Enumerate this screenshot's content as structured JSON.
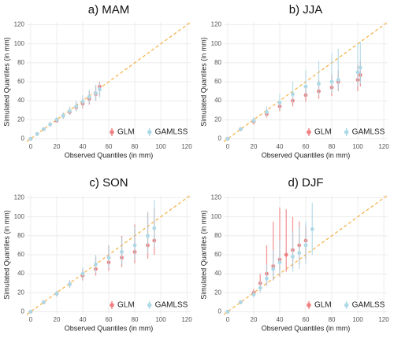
{
  "chart_data": [
    {
      "type": "scatter",
      "title": "a) MAM",
      "xlabel": "Observed Quantiles (in mm)",
      "ylabel": "Simulated Quantiles (in mm)",
      "xlim": [
        -3,
        123
      ],
      "ylim": [
        -3,
        123
      ],
      "xticks": [
        0,
        20,
        40,
        60,
        80,
        100,
        120
      ],
      "yticks": [
        0,
        20,
        40,
        60,
        80,
        100,
        120
      ],
      "grid": true,
      "legend": "bottom-right",
      "series": [
        {
          "name": "GLM",
          "color": "#f08080",
          "x": [
            0,
            5,
            10,
            15,
            20,
            25,
            30,
            35,
            40,
            45,
            50,
            53
          ],
          "values": [
            0,
            5,
            10,
            15,
            19,
            24,
            28,
            33,
            37,
            42,
            47,
            55
          ],
          "lower": [
            0,
            4,
            8,
            13,
            17,
            21,
            25,
            29,
            32,
            36,
            40,
            45
          ],
          "upper": [
            1,
            6,
            12,
            17,
            22,
            27,
            32,
            38,
            43,
            50,
            56,
            60
          ]
        },
        {
          "name": "GAMLSS",
          "color": "#add8e6",
          "x": [
            0,
            5,
            10,
            15,
            20,
            25,
            30,
            35,
            40,
            45,
            50,
            53
          ],
          "values": [
            0,
            5,
            10,
            15,
            20,
            24,
            29,
            34,
            39,
            44,
            48,
            52
          ],
          "lower": [
            0,
            4,
            8,
            13,
            17,
            21,
            25,
            29,
            33,
            37,
            40,
            43
          ],
          "upper": [
            1,
            6,
            12,
            18,
            23,
            28,
            34,
            40,
            46,
            52,
            57,
            59
          ]
        }
      ]
    },
    {
      "type": "scatter",
      "title": "b) JJA",
      "xlabel": "Observed Quantiles (in mm)",
      "ylabel": "Simulated Quantiles (in mm)",
      "xlim": [
        -3,
        123
      ],
      "ylim": [
        -3,
        123
      ],
      "xticks": [
        0,
        20,
        40,
        60,
        80,
        100,
        120
      ],
      "yticks": [
        0,
        20,
        40,
        60,
        80,
        100,
        120
      ],
      "grid": true,
      "legend": "bottom-right",
      "series": [
        {
          "name": "GLM",
          "color": "#f08080",
          "x": [
            0,
            10,
            20,
            30,
            40,
            50,
            60,
            70,
            80,
            85,
            100,
            102
          ],
          "values": [
            0,
            10,
            18,
            26,
            34,
            40,
            46,
            50,
            54,
            60,
            62,
            67
          ],
          "lower": [
            0,
            8,
            15,
            22,
            29,
            34,
            39,
            42,
            45,
            50,
            50,
            55
          ],
          "upper": [
            1,
            12,
            21,
            31,
            40,
            48,
            56,
            62,
            68,
            72,
            78,
            82
          ]
        },
        {
          "name": "GAMLSS",
          "color": "#add8e6",
          "x": [
            0,
            10,
            20,
            30,
            40,
            50,
            60,
            70,
            80,
            85,
            100,
            102
          ],
          "values": [
            0,
            10,
            19,
            28,
            38,
            47,
            55,
            58,
            60,
            62,
            70,
            75
          ],
          "lower": [
            0,
            8,
            16,
            23,
            31,
            38,
            44,
            46,
            48,
            50,
            55,
            58
          ],
          "upper": [
            1,
            12,
            23,
            34,
            47,
            60,
            72,
            82,
            90,
            95,
            100,
            102
          ]
        }
      ]
    },
    {
      "type": "scatter",
      "title": "c) SON",
      "xlabel": "Observed Quantiles (in mm)",
      "ylabel": "Simulated Quantiles (in mm)",
      "xlim": [
        -3,
        123
      ],
      "ylim": [
        -3,
        123
      ],
      "xticks": [
        0,
        20,
        40,
        60,
        80,
        100,
        120
      ],
      "yticks": [
        0,
        20,
        40,
        60,
        80,
        100,
        120
      ],
      "grid": true,
      "legend": "bottom-right",
      "series": [
        {
          "name": "GLM",
          "color": "#f08080",
          "x": [
            0,
            10,
            20,
            30,
            40,
            50,
            60,
            70,
            80,
            90,
            95
          ],
          "values": [
            0,
            10,
            19,
            29,
            38,
            45,
            52,
            57,
            63,
            70,
            75
          ],
          "lower": [
            0,
            8,
            16,
            25,
            33,
            38,
            43,
            47,
            51,
            56,
            60
          ],
          "upper": [
            1,
            12,
            22,
            33,
            45,
            58,
            70,
            80,
            92,
            105,
            110
          ]
        },
        {
          "name": "GAMLSS",
          "color": "#add8e6",
          "x": [
            0,
            10,
            20,
            30,
            40,
            50,
            60,
            70,
            80,
            90,
            95
          ],
          "values": [
            0,
            10,
            19,
            29,
            40,
            50,
            57,
            63,
            70,
            80,
            88
          ],
          "lower": [
            0,
            8,
            16,
            25,
            34,
            41,
            46,
            50,
            55,
            62,
            68
          ],
          "upper": [
            1,
            12,
            22,
            33,
            47,
            60,
            70,
            78,
            90,
            105,
            118
          ]
        }
      ]
    },
    {
      "type": "scatter",
      "title": "d) DJF",
      "xlabel": "Observed Quantiles (in mm)",
      "ylabel": "Simulated Quantiles (in mm)",
      "xlim": [
        -3,
        123
      ],
      "ylim": [
        -3,
        123
      ],
      "xticks": [
        0,
        20,
        40,
        60,
        80,
        100,
        120
      ],
      "yticks": [
        0,
        20,
        40,
        60,
        80,
        100,
        120
      ],
      "grid": true,
      "legend": "bottom-right",
      "series": [
        {
          "name": "GLM",
          "color": "#f08080",
          "x": [
            0,
            10,
            20,
            25,
            30,
            35,
            40,
            45,
            50,
            55,
            60
          ],
          "values": [
            0,
            10,
            20,
            30,
            40,
            48,
            55,
            60,
            65,
            70,
            75
          ],
          "lower": [
            0,
            8,
            16,
            22,
            28,
            33,
            37,
            42,
            46,
            50,
            55
          ],
          "upper": [
            1,
            12,
            24,
            40,
            70,
            95,
            110,
            108,
            100,
            95,
            90
          ]
        },
        {
          "name": "GAMLSS",
          "color": "#add8e6",
          "x": [
            0,
            10,
            20,
            25,
            30,
            35,
            40,
            50,
            55,
            60,
            65
          ],
          "values": [
            0,
            10,
            18,
            25,
            35,
            45,
            52,
            58,
            62,
            70,
            87
          ],
          "lower": [
            0,
            8,
            15,
            20,
            27,
            34,
            38,
            42,
            45,
            50,
            60
          ],
          "upper": [
            1,
            12,
            22,
            32,
            50,
            65,
            75,
            85,
            90,
            95,
            115
          ]
        }
      ]
    }
  ]
}
